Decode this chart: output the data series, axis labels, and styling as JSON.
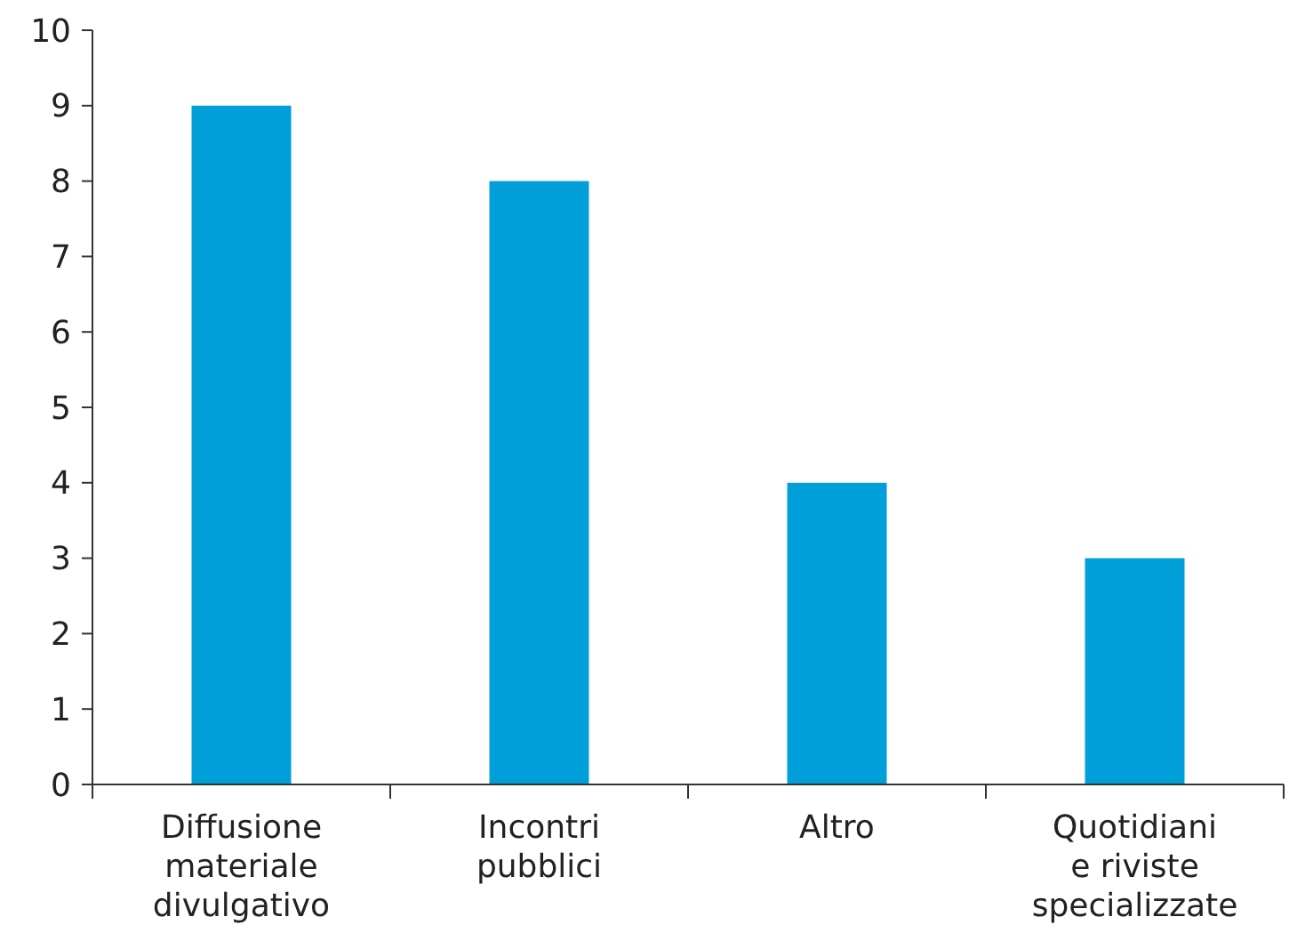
{
  "chart_data": {
    "type": "bar",
    "categories": [
      "Diffusione materiale divulgativo",
      "Incontri pubblici",
      "Altro",
      "Quotidiani e riviste specializzate"
    ],
    "values": [
      9,
      8,
      4,
      3
    ],
    "color": "#009fda",
    "ylim": [
      0,
      10
    ],
    "yticks": [
      0,
      1,
      2,
      3,
      4,
      5,
      6,
      7,
      8,
      9,
      10
    ],
    "grid": false
  }
}
